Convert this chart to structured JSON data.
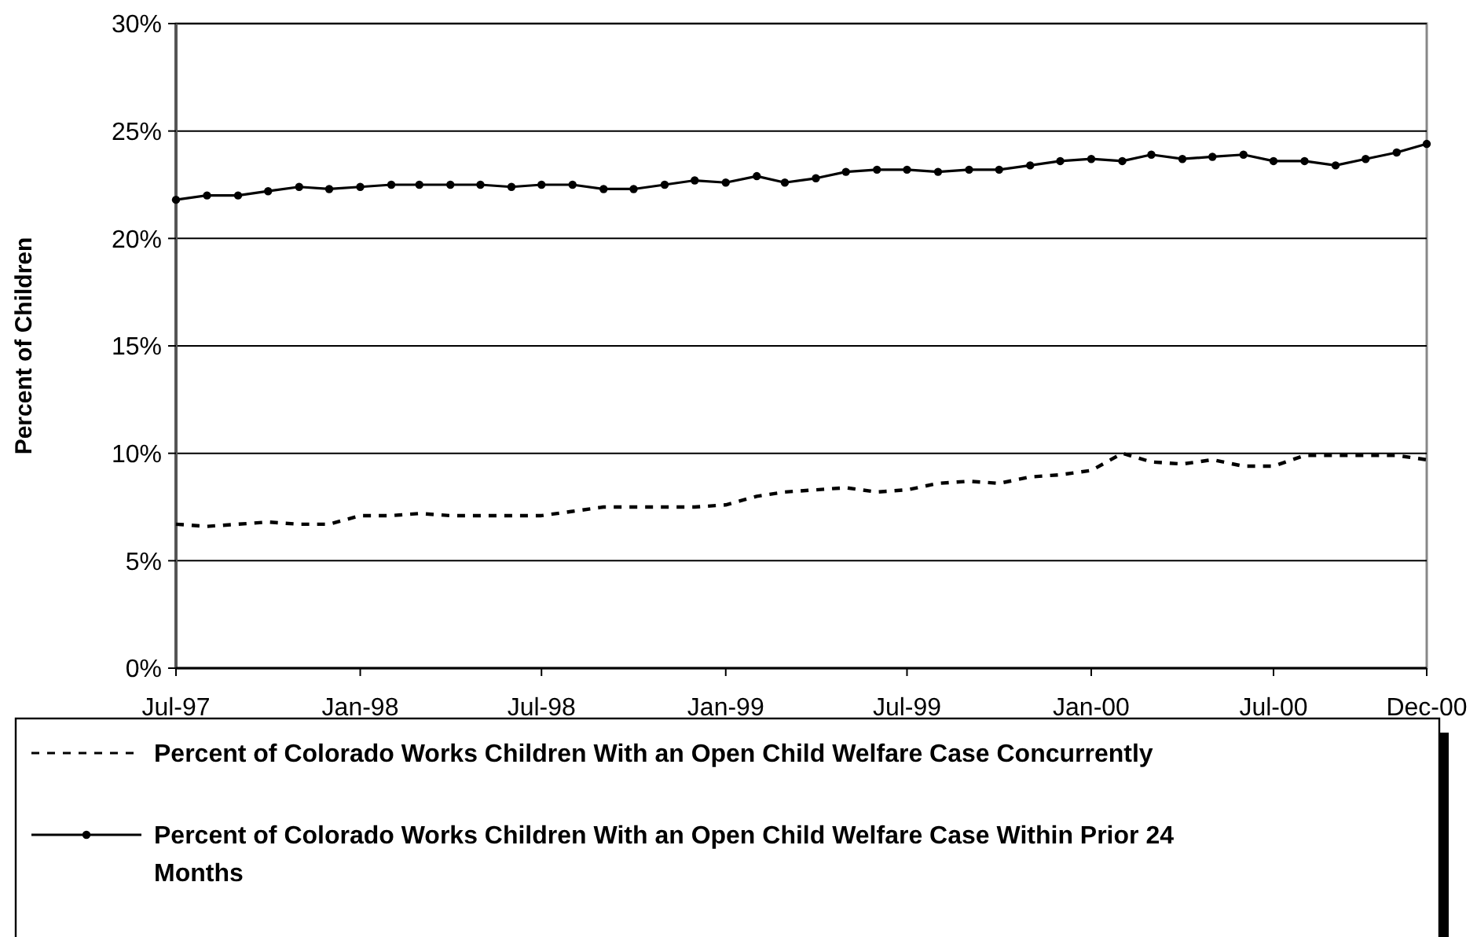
{
  "chart_data": {
    "type": "line",
    "ylabel": "Percent of Children",
    "x": [
      "1997-07",
      "1997-08",
      "1997-09",
      "1997-10",
      "1997-11",
      "1997-12",
      "1998-01",
      "1998-02",
      "1998-03",
      "1998-04",
      "1998-05",
      "1998-06",
      "1998-07",
      "1998-08",
      "1998-09",
      "1998-10",
      "1998-11",
      "1998-12",
      "1999-01",
      "1999-02",
      "1999-03",
      "1999-04",
      "1999-05",
      "1999-06",
      "1999-07",
      "1999-08",
      "1999-09",
      "1999-10",
      "1999-11",
      "1999-12",
      "2000-01",
      "2000-02",
      "2000-03",
      "2000-04",
      "2000-05",
      "2000-06",
      "2000-07",
      "2000-08",
      "2000-09",
      "2000-10",
      "2000-11",
      "2000-12"
    ],
    "series": [
      {
        "name": "Percent of Colorado Works Children With an Open Child Welfare Case Concurrently",
        "color": "#000000",
        "line_style": "dashed",
        "marker": "none",
        "values": [
          6.7,
          6.6,
          6.7,
          6.8,
          6.7,
          6.7,
          7.1,
          7.1,
          7.2,
          7.1,
          7.1,
          7.1,
          7.1,
          7.3,
          7.5,
          7.5,
          7.5,
          7.5,
          7.6,
          8.0,
          8.2,
          8.3,
          8.4,
          8.2,
          8.3,
          8.6,
          8.7,
          8.6,
          8.9,
          9.0,
          9.2,
          10.0,
          9.6,
          9.5,
          9.7,
          9.4,
          9.4,
          9.9,
          9.9,
          9.9,
          9.9,
          9.7
        ]
      },
      {
        "name": "Percent of Colorado Works Children With an Open Child Welfare Case Within Prior 24 Months",
        "color": "#000000",
        "line_style": "solid",
        "marker": "circle",
        "values": [
          21.8,
          22.0,
          22.0,
          22.2,
          22.4,
          22.3,
          22.4,
          22.5,
          22.5,
          22.5,
          22.5,
          22.4,
          22.5,
          22.5,
          22.3,
          22.3,
          22.5,
          22.7,
          22.6,
          22.9,
          22.6,
          22.8,
          23.1,
          23.2,
          23.2,
          23.1,
          23.2,
          23.2,
          23.4,
          23.6,
          23.7,
          23.6,
          23.9,
          23.7,
          23.8,
          23.9,
          23.6,
          23.6,
          23.4,
          23.7,
          24.0,
          24.4
        ]
      }
    ],
    "xlim": [
      "1997-07",
      "2000-12"
    ],
    "xticks": [
      {
        "value": "1997-07",
        "label": "Jul-97"
      },
      {
        "value": "1998-01",
        "label": "Jan-98"
      },
      {
        "value": "1998-07",
        "label": "Jul-98"
      },
      {
        "value": "1999-01",
        "label": "Jan-99"
      },
      {
        "value": "1999-07",
        "label": "Jul-99"
      },
      {
        "value": "2000-01",
        "label": "Jan-00"
      },
      {
        "value": "2000-07",
        "label": "Jul-00"
      },
      {
        "value": "2000-12",
        "label": "Dec-00"
      }
    ],
    "ylim": [
      0,
      30
    ],
    "yticks": [
      {
        "value": 0,
        "label": "0%"
      },
      {
        "value": 5,
        "label": "5%"
      },
      {
        "value": 10,
        "label": "10%"
      },
      {
        "value": 15,
        "label": "15%"
      },
      {
        "value": 20,
        "label": "20%"
      },
      {
        "value": 25,
        "label": "25%"
      },
      {
        "value": 30,
        "label": "30%"
      }
    ],
    "grid": "y",
    "legend": "bottom"
  }
}
